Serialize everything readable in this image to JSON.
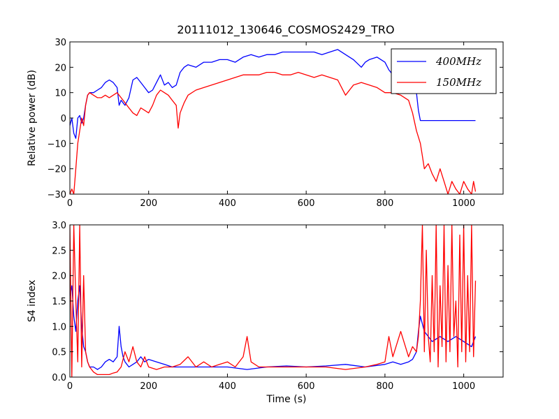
{
  "chart_data": [
    {
      "type": "line",
      "title": "20111012_130646_COSMOS2429_TRO",
      "xlabel": "",
      "ylabel": "Relative power (dB)",
      "xlim": [
        0,
        1100
      ],
      "ylim": [
        -30,
        30
      ],
      "xticks": [
        0,
        200,
        400,
        600,
        800,
        1000
      ],
      "yticks": [
        -30,
        -20,
        -10,
        0,
        10,
        20,
        30
      ],
      "grid": false,
      "legend": "top-right",
      "series": [
        {
          "name": "400MHz",
          "color": "#0000ff",
          "x": [
            0,
            5,
            10,
            15,
            20,
            25,
            30,
            35,
            40,
            45,
            50,
            60,
            70,
            80,
            90,
            100,
            110,
            120,
            125,
            130,
            140,
            150,
            160,
            170,
            180,
            190,
            200,
            210,
            220,
            230,
            240,
            250,
            260,
            270,
            280,
            290,
            300,
            320,
            340,
            360,
            380,
            400,
            420,
            440,
            460,
            480,
            500,
            520,
            540,
            560,
            580,
            600,
            620,
            640,
            660,
            680,
            700,
            720,
            740,
            750,
            760,
            780,
            800,
            810,
            820,
            840,
            860,
            870,
            880,
            885,
            890,
            900,
            950,
            1000,
            1030
          ],
          "y": [
            -3,
            0,
            -6,
            -8,
            0,
            1,
            -2,
            0,
            5,
            9,
            10,
            10,
            11,
            12,
            14,
            15,
            14,
            12,
            5,
            7,
            5,
            8,
            15,
            16,
            14,
            12,
            10,
            11,
            14,
            17,
            13,
            14,
            12,
            13,
            18,
            20,
            21,
            20,
            22,
            22,
            23,
            23,
            22,
            24,
            25,
            24,
            25,
            25,
            26,
            26,
            26,
            26,
            26,
            25,
            26,
            27,
            25,
            23,
            20,
            22,
            23,
            24,
            22,
            19,
            17,
            16,
            15,
            13,
            10,
            3,
            -1,
            -1,
            -1,
            -1,
            -1
          ]
        },
        {
          "name": "150MHz",
          "color": "#ff0000",
          "x": [
            0,
            5,
            10,
            15,
            20,
            25,
            30,
            35,
            40,
            45,
            50,
            60,
            70,
            80,
            90,
            100,
            110,
            120,
            130,
            140,
            150,
            160,
            170,
            180,
            190,
            200,
            210,
            220,
            230,
            240,
            250,
            260,
            270,
            275,
            280,
            285,
            290,
            300,
            320,
            340,
            360,
            380,
            400,
            420,
            440,
            460,
            480,
            500,
            520,
            540,
            560,
            580,
            600,
            620,
            640,
            660,
            680,
            700,
            720,
            740,
            760,
            780,
            800,
            820,
            840,
            860,
            870,
            880,
            890,
            895,
            900,
            910,
            920,
            930,
            940,
            950,
            960,
            970,
            980,
            990,
            1000,
            1010,
            1020,
            1025,
            1030
          ],
          "y": [
            -30,
            -28,
            -30,
            -20,
            -10,
            -5,
            0,
            -3,
            5,
            9,
            10,
            9,
            8,
            8,
            9,
            8,
            9,
            10,
            8,
            6,
            4,
            2,
            1,
            4,
            3,
            2,
            5,
            9,
            11,
            10,
            9,
            7,
            5,
            -4,
            2,
            4,
            6,
            9,
            11,
            12,
            13,
            14,
            15,
            16,
            17,
            17,
            17,
            18,
            18,
            17,
            17,
            18,
            17,
            16,
            17,
            16,
            15,
            9,
            13,
            14,
            13,
            12,
            10,
            10,
            9,
            7,
            2,
            -5,
            -10,
            -15,
            -20,
            -18,
            -22,
            -25,
            -20,
            -25,
            -30,
            -25,
            -28,
            -30,
            -25,
            -28,
            -30,
            -25,
            -29
          ]
        }
      ]
    },
    {
      "type": "line",
      "title": "",
      "xlabel": "Time (s)",
      "ylabel": "S4 index",
      "xlim": [
        0,
        1100
      ],
      "ylim": [
        0,
        3
      ],
      "xticks": [
        0,
        200,
        400,
        600,
        800,
        1000
      ],
      "yticks": [
        0.0,
        0.5,
        1.0,
        1.5,
        2.0,
        2.5,
        3.0
      ],
      "grid": false,
      "series": [
        {
          "name": "400MHz",
          "color": "#0000ff",
          "x": [
            0,
            5,
            10,
            15,
            20,
            25,
            30,
            35,
            40,
            45,
            50,
            60,
            70,
            80,
            90,
            100,
            110,
            120,
            125,
            130,
            135,
            140,
            150,
            160,
            170,
            180,
            190,
            200,
            220,
            240,
            260,
            280,
            300,
            350,
            400,
            450,
            500,
            550,
            600,
            650,
            700,
            750,
            800,
            820,
            840,
            860,
            870,
            880,
            885,
            890,
            900,
            920,
            940,
            960,
            980,
            1000,
            1020,
            1030
          ],
          "y": [
            1.6,
            1.8,
            1.2,
            0.9,
            1.5,
            1.8,
            1.0,
            0.6,
            0.5,
            0.3,
            0.2,
            0.2,
            0.15,
            0.2,
            0.3,
            0.35,
            0.3,
            0.4,
            1.0,
            0.6,
            0.4,
            0.3,
            0.2,
            0.25,
            0.3,
            0.4,
            0.3,
            0.35,
            0.3,
            0.25,
            0.2,
            0.2,
            0.2,
            0.2,
            0.2,
            0.15,
            0.2,
            0.22,
            0.2,
            0.22,
            0.25,
            0.2,
            0.25,
            0.3,
            0.25,
            0.3,
            0.35,
            0.5,
            0.9,
            1.2,
            0.9,
            0.7,
            0.8,
            0.7,
            0.8,
            0.7,
            0.6,
            0.8
          ]
        },
        {
          "name": "150MHz",
          "color": "#ff0000",
          "x": [
            0,
            5,
            10,
            15,
            20,
            25,
            30,
            35,
            40,
            45,
            50,
            60,
            70,
            80,
            90,
            100,
            110,
            120,
            130,
            140,
            150,
            160,
            170,
            180,
            190,
            200,
            220,
            240,
            260,
            280,
            300,
            320,
            340,
            360,
            380,
            400,
            420,
            440,
            450,
            460,
            480,
            500,
            550,
            600,
            650,
            700,
            750,
            780,
            800,
            810,
            820,
            840,
            860,
            870,
            880,
            885,
            890,
            895,
            900,
            905,
            910,
            915,
            920,
            925,
            930,
            935,
            940,
            945,
            950,
            955,
            960,
            965,
            970,
            975,
            980,
            985,
            990,
            995,
            1000,
            1005,
            1010,
            1015,
            1020,
            1025,
            1030
          ],
          "y": [
            3.0,
            0.0,
            3.0,
            1.5,
            0.3,
            3.0,
            0.2,
            2.0,
            0.5,
            0.3,
            0.2,
            0.1,
            0.05,
            0.05,
            0.05,
            0.05,
            0.08,
            0.1,
            0.2,
            0.5,
            0.3,
            0.6,
            0.3,
            0.2,
            0.4,
            0.2,
            0.15,
            0.2,
            0.2,
            0.25,
            0.4,
            0.2,
            0.3,
            0.2,
            0.25,
            0.3,
            0.2,
            0.4,
            0.8,
            0.3,
            0.2,
            0.2,
            0.2,
            0.2,
            0.2,
            0.15,
            0.2,
            0.25,
            0.3,
            0.8,
            0.4,
            0.9,
            0.4,
            0.6,
            0.5,
            0.8,
            1.5,
            3.0,
            0.5,
            2.5,
            0.8,
            0.3,
            2.0,
            0.5,
            3.0,
            0.2,
            1.8,
            0.6,
            3.0,
            0.3,
            2.2,
            0.5,
            3.0,
            0.8,
            1.5,
            0.2,
            2.8,
            0.5,
            3.0,
            0.3,
            2.0,
            0.5,
            3.0,
            0.4,
            1.9
          ]
        }
      ]
    }
  ]
}
